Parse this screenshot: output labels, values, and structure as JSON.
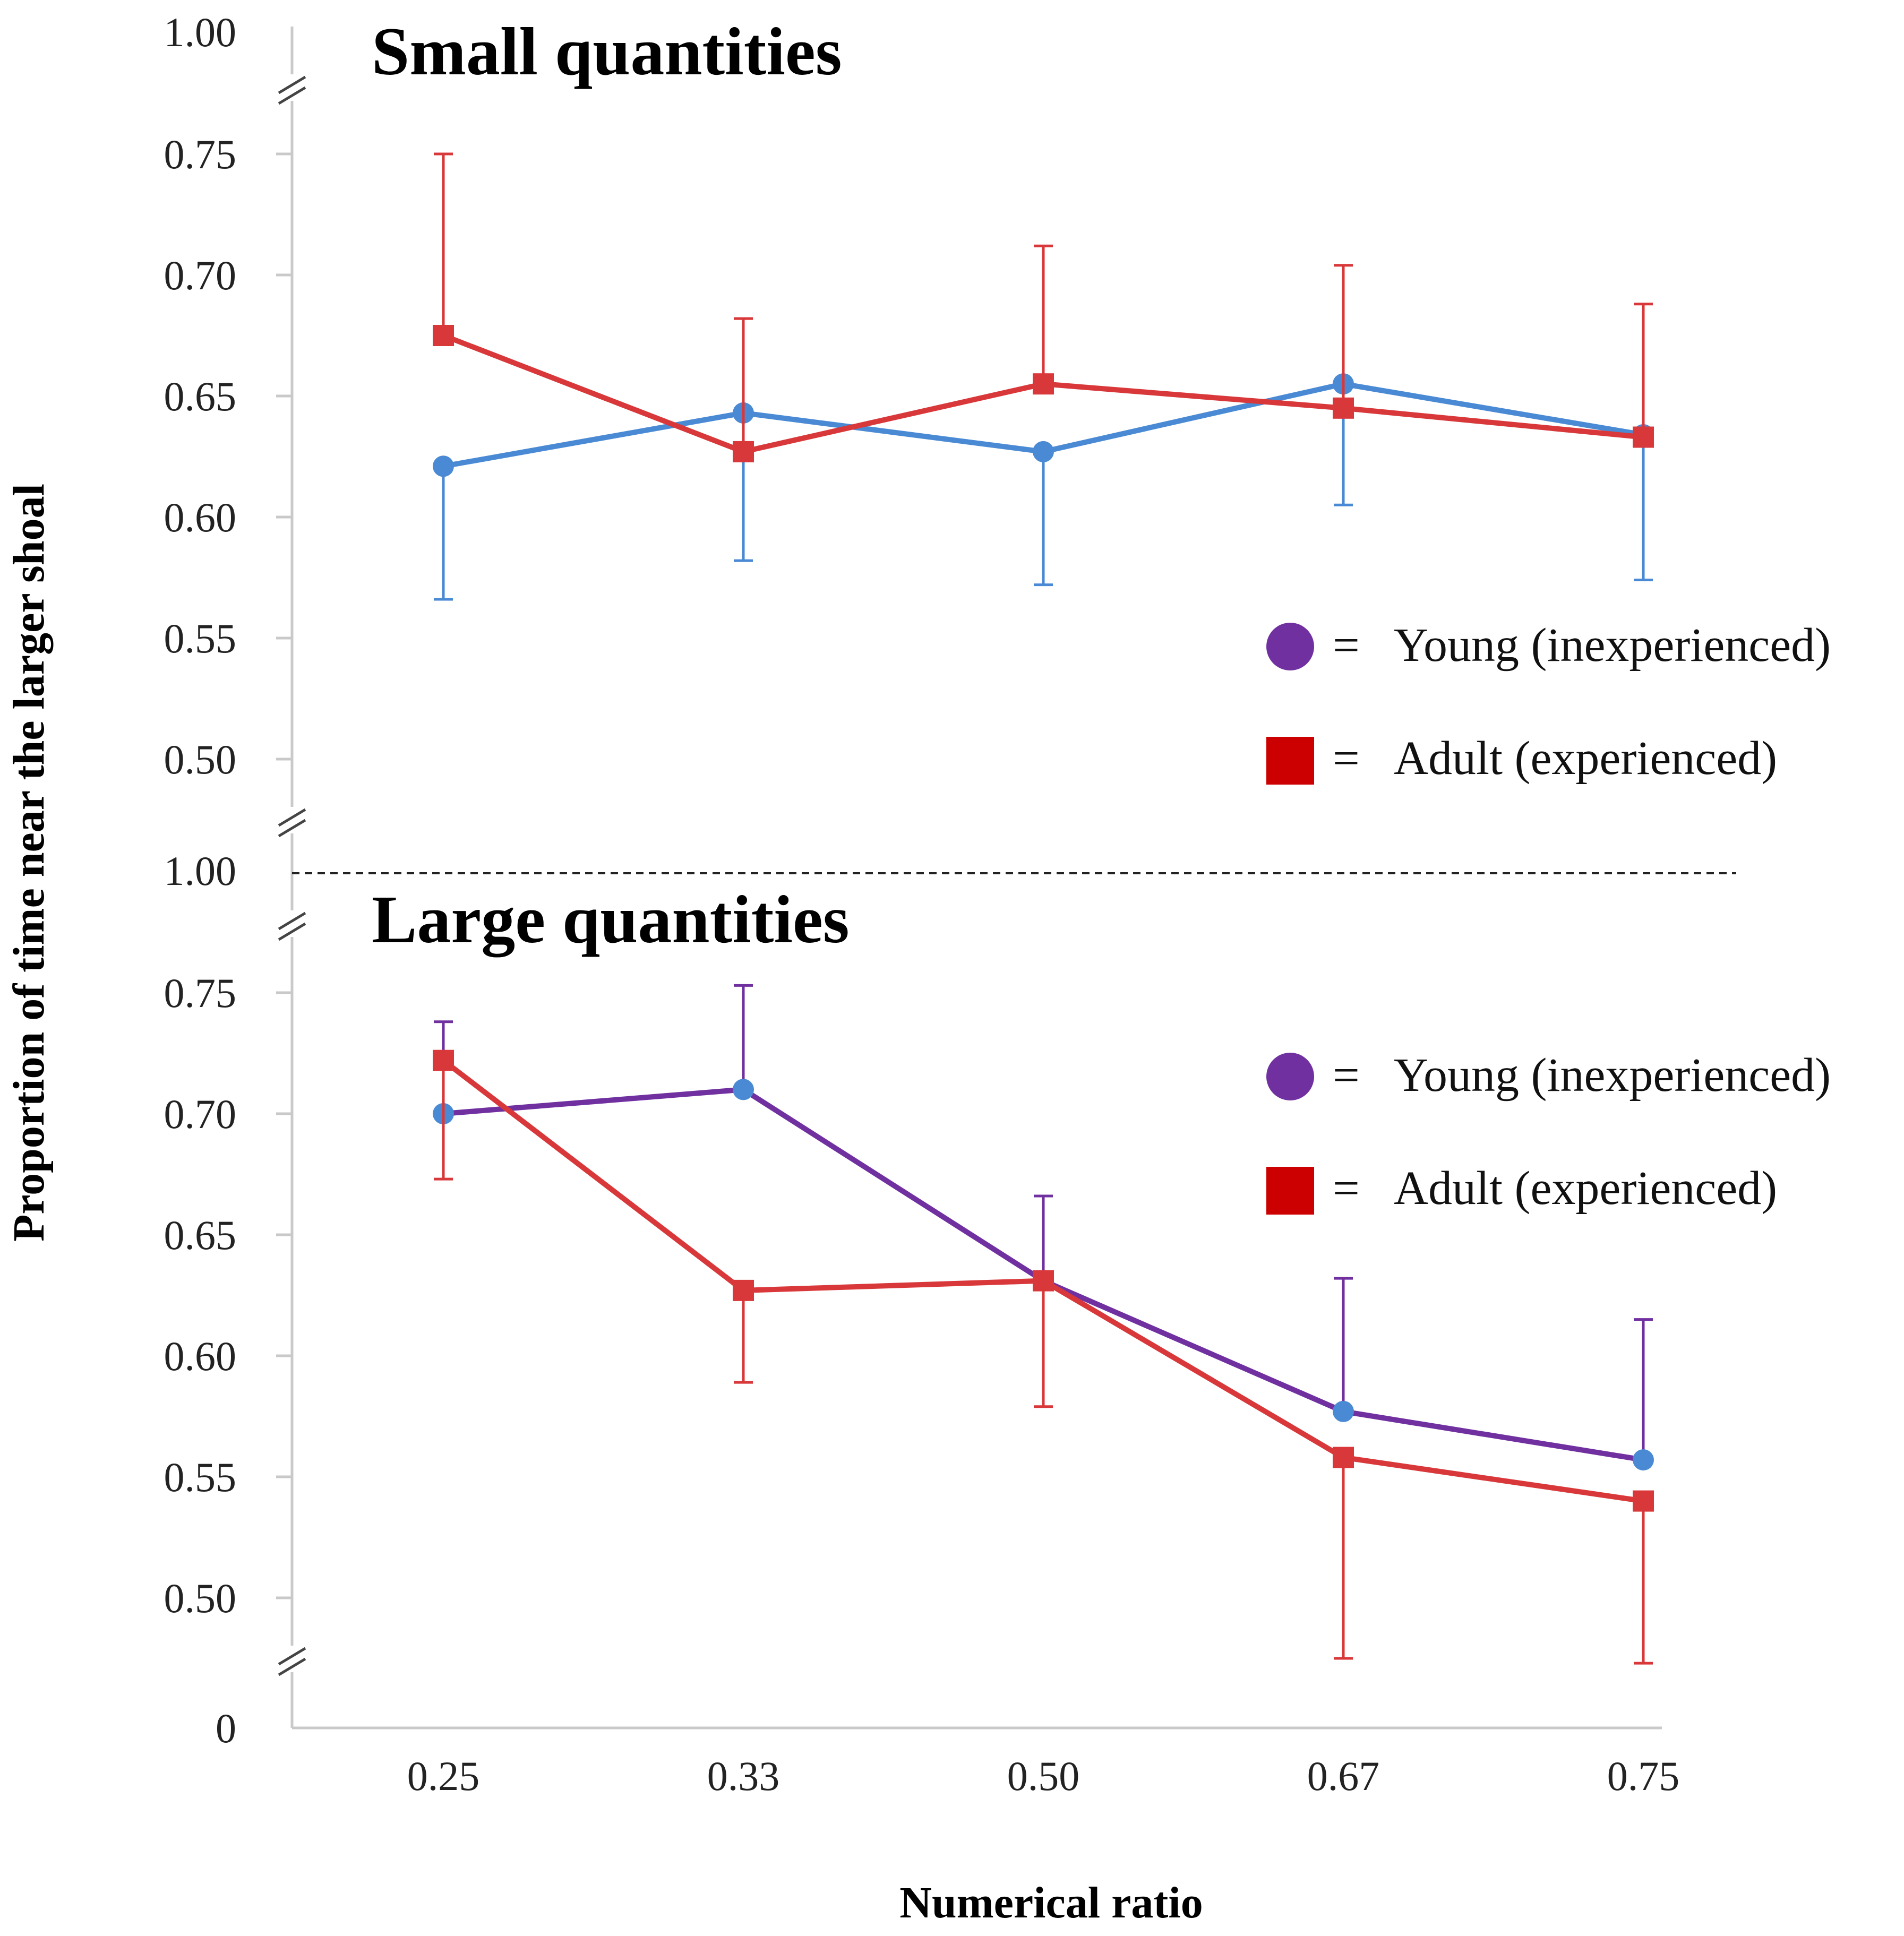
{
  "chart_data": {
    "type": "line",
    "ylabel": "Proportion of time near the larger shoal",
    "xlabel": "Numerical ratio",
    "x_categories": [
      "0.25",
      "0.33",
      "0.50",
      "0.67",
      "0.75"
    ],
    "y_tick_labels": [
      "0.50",
      "0.55",
      "0.60",
      "0.65",
      "0.70",
      "0.75",
      "1.00"
    ],
    "bottom_axis_label": "0",
    "ylim": [
      0.5,
      0.75
    ],
    "axis_break": true,
    "grid": false,
    "legend_position": "right",
    "legend": {
      "equals": "=",
      "young": "Young (inexperienced)",
      "adult": "Adult (experienced)",
      "young_marker_color": "#7030a0",
      "adult_marker_color": "#cc0000"
    },
    "panels": [
      {
        "title": "Small quantities",
        "series": [
          {
            "name": "Young (inexperienced)",
            "color": "#4a8ad4",
            "marker": "circle",
            "values": [
              0.621,
              0.643,
              0.627,
              0.655,
              0.634
            ],
            "error_low": [
              0.566,
              0.582,
              0.572,
              0.605,
              0.574
            ],
            "error_high": [
              0.621,
              0.643,
              0.627,
              0.655,
              0.634
            ]
          },
          {
            "name": "Adult (experienced)",
            "color": "#d9383a",
            "marker": "square",
            "values": [
              0.675,
              0.627,
              0.655,
              0.645,
              0.633
            ],
            "error_low": [
              0.675,
              0.627,
              0.655,
              0.645,
              0.633
            ],
            "error_high": [
              0.75,
              0.682,
              0.712,
              0.704,
              0.688
            ]
          }
        ]
      },
      {
        "title": "Large quantities",
        "series": [
          {
            "name": "Young (inexperienced)",
            "color": "#7030a0",
            "marker_color": "#4a8ad4",
            "marker": "circle",
            "values": [
              0.7,
              0.71,
              0.631,
              0.577,
              0.557
            ],
            "error_low": [
              0.7,
              0.71,
              0.631,
              0.577,
              0.557
            ],
            "error_high": [
              0.738,
              0.753,
              0.666,
              0.632,
              0.615
            ]
          },
          {
            "name": "Adult (experienced)",
            "color": "#d9383a",
            "marker": "square",
            "values": [
              0.722,
              0.627,
              0.631,
              0.558,
              0.54
            ],
            "error_low": [
              0.673,
              0.589,
              0.579,
              0.475,
              0.473
            ],
            "error_high": [
              0.722,
              0.627,
              0.631,
              0.558,
              0.54
            ]
          }
        ]
      }
    ]
  }
}
